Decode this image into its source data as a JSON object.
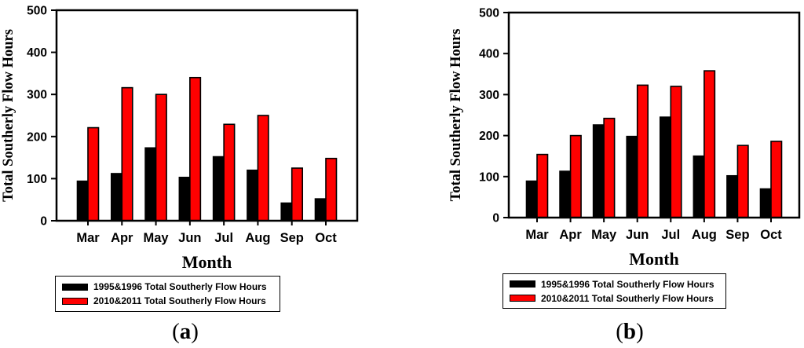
{
  "page": {
    "background": "#ffffff"
  },
  "colors": {
    "series1": "#000000",
    "series2": "#ff0000",
    "axis": "#000000"
  },
  "captions": {
    "a": {
      "open": "(",
      "letter": "a",
      "close": ")"
    },
    "b": {
      "open": "(",
      "letter": "b",
      "close": ")"
    }
  },
  "chart_data": [
    {
      "id": "a",
      "panel_label": "(a)",
      "type": "bar",
      "xlabel": "Month",
      "ylabel": "Total Southerly Flow Hours",
      "ylim": [
        0,
        500
      ],
      "yticks": [
        0,
        100,
        200,
        300,
        400,
        500
      ],
      "grid": false,
      "legend_position": "below",
      "categories": [
        "Mar",
        "Apr",
        "May",
        "Jun",
        "Jul",
        "Aug",
        "Sep",
        "Oct"
      ],
      "series": [
        {
          "name": "1995&1996 Total Southerly Flow Hours",
          "color": "#000000",
          "values": [
            94,
            112,
            173,
            103,
            152,
            120,
            42,
            52
          ]
        },
        {
          "name": "2010&2011 Total Southerly Flow Hours",
          "color": "#ff0000",
          "values": [
            221,
            316,
            300,
            340,
            229,
            250,
            125,
            148
          ]
        }
      ]
    },
    {
      "id": "b",
      "panel_label": "(b)",
      "type": "bar",
      "xlabel": "Month",
      "ylabel": "Total Southerly Flow Hours",
      "ylim": [
        0,
        500
      ],
      "yticks": [
        0,
        100,
        200,
        300,
        400,
        500
      ],
      "grid": false,
      "legend_position": "below",
      "categories": [
        "Mar",
        "Apr",
        "May",
        "Jun",
        "Jul",
        "Aug",
        "Sep",
        "Oct"
      ],
      "series": [
        {
          "name": "1995&1996 Total Southerly Flow Hours",
          "color": "#000000",
          "values": [
            89,
            113,
            226,
            198,
            245,
            150,
            102,
            70
          ]
        },
        {
          "name": "2010&2011 Total Southerly Flow Hours",
          "color": "#ff0000",
          "values": [
            154,
            200,
            242,
            323,
            320,
            358,
            176,
            186
          ]
        }
      ]
    }
  ]
}
